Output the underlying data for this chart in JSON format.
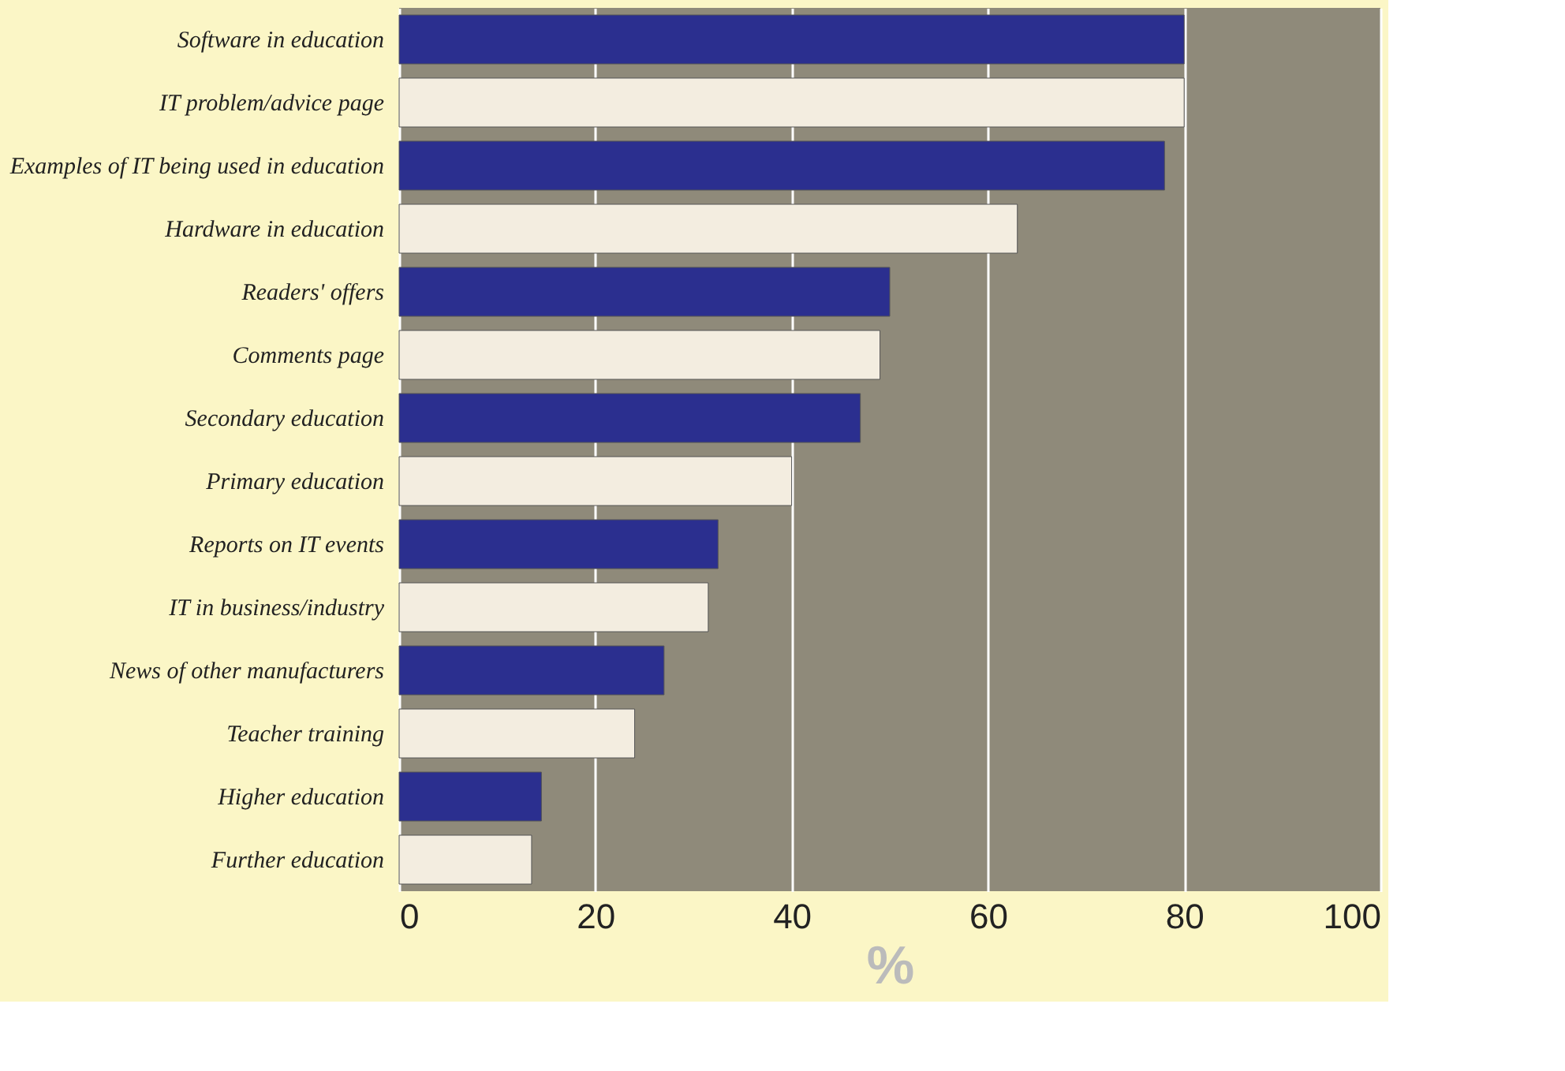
{
  "chart_data": {
    "type": "bar",
    "orientation": "horizontal",
    "xlabel": "%",
    "categories": [
      "Software in education",
      "IT problem/advice page",
      "Examples of IT being used in education",
      "Hardware in education",
      "Readers' offers",
      "Comments page",
      "Secondary education",
      "Primary education",
      "Reports on IT events",
      "IT in business/industry",
      "News of other manufacturers",
      "Teacher training",
      "Higher education",
      "Further education"
    ],
    "values": [
      80,
      80,
      78,
      63,
      50,
      49,
      47,
      40,
      32.5,
      31.5,
      27,
      24,
      14.5,
      13.5
    ],
    "colors": [
      "#2b2f8f",
      "#f3ede0",
      "#2b2f8f",
      "#f3ede0",
      "#2b2f8f",
      "#f3ede0",
      "#2b2f8f",
      "#f3ede0",
      "#2b2f8f",
      "#f3ede0",
      "#2b2f8f",
      "#f3ede0",
      "#2b2f8f",
      "#f3ede0"
    ],
    "xlim": [
      0,
      100
    ],
    "xticks": [
      0,
      20,
      40,
      60,
      80,
      100
    ],
    "grid": "x"
  }
}
